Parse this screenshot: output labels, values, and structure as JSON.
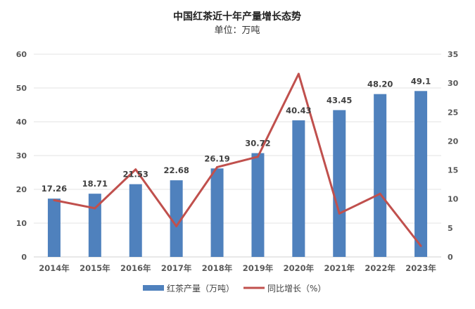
{
  "chart_data": {
    "type": "bar",
    "title": "中国红茶近十年产量增长态势",
    "subtitle": "单位：万吨",
    "categories": [
      "2014年",
      "2015年",
      "2016年",
      "2017年",
      "2018年",
      "2019年",
      "2020年",
      "2021年",
      "2022年",
      "2023年"
    ],
    "series": [
      {
        "name": "红茶产量（万吨）",
        "type": "bar",
        "axis": "left",
        "color": "#4F81BD",
        "values": [
          17.26,
          18.71,
          21.53,
          22.68,
          26.19,
          30.72,
          40.43,
          43.45,
          48.2,
          49.1
        ],
        "labels": [
          "17.26",
          "18.71",
          "21.53",
          "22.68",
          "26.19",
          "30.72",
          "40.43",
          "43.45",
          "48.20",
          "49.1"
        ]
      },
      {
        "name": "同比增长（%）",
        "type": "line",
        "axis": "right",
        "color": "#C0504D",
        "values": [
          9.8,
          8.4,
          15.1,
          5.3,
          15.5,
          17.3,
          31.6,
          7.5,
          10.9,
          1.9
        ]
      }
    ],
    "y_left": {
      "min": 0,
      "max": 60,
      "ticks": [
        "0",
        "10",
        "20",
        "30",
        "40",
        "50",
        "60"
      ]
    },
    "y_right": {
      "min": 0,
      "max": 35,
      "ticks": [
        "0",
        "5",
        "10",
        "15",
        "20",
        "25",
        "30",
        "35"
      ]
    },
    "grid": true,
    "legend": "bottom"
  }
}
